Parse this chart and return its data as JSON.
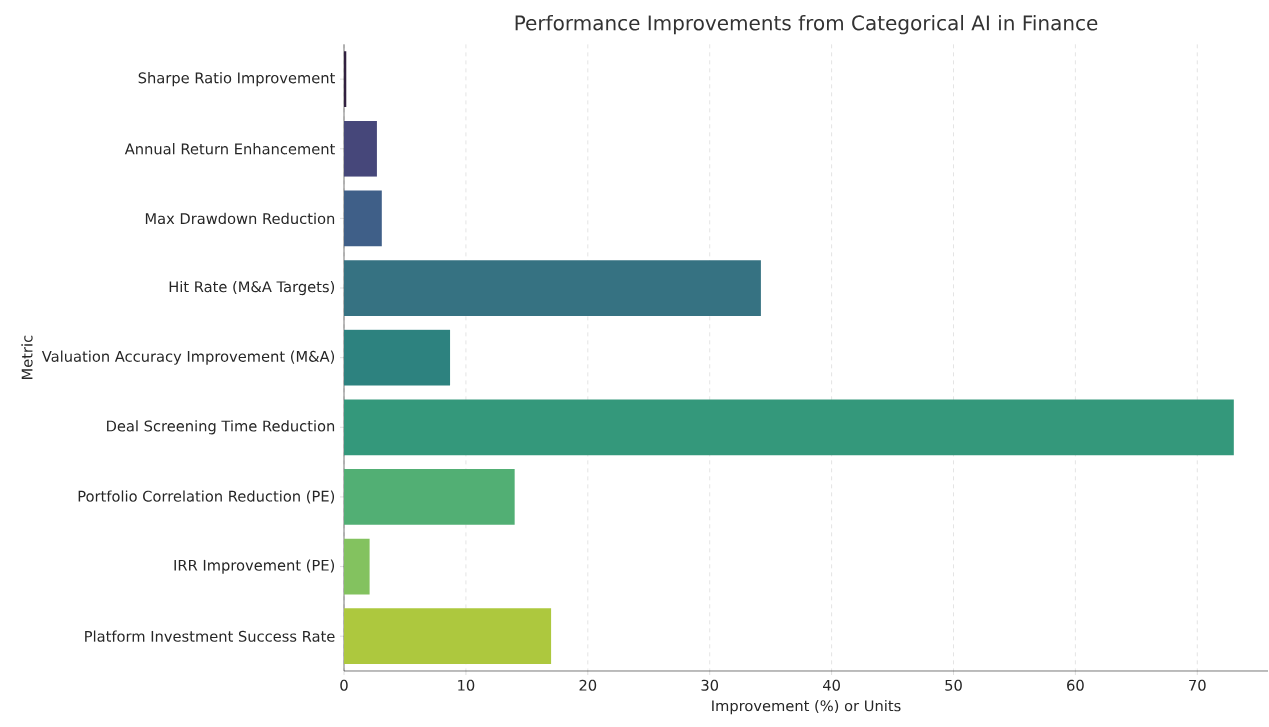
{
  "chart_data": {
    "type": "bar",
    "orientation": "horizontal",
    "title": "Performance Improvements from Categorical AI in Finance",
    "xlabel": "Improvement (%) or Units",
    "ylabel": "Metric",
    "categories": [
      "Sharpe Ratio Improvement",
      "Annual Return Enhancement",
      "Max Drawdown Reduction",
      "Hit Rate (M&A Targets)",
      "Valuation Accuracy Improvement (M&A)",
      "Deal Screening Time Reduction",
      "Portfolio Correlation Reduction (PE)",
      "IRR Improvement (PE)",
      "Platform Investment Success Rate"
    ],
    "values": [
      0.2,
      2.7,
      3.1,
      34.2,
      8.7,
      73.0,
      14.0,
      2.1,
      17.0
    ],
    "colors": [
      "#31203f",
      "#46477a",
      "#3f5f88",
      "#367282",
      "#2d827f",
      "#34987b",
      "#52af74",
      "#83c25f",
      "#adc83e"
    ],
    "xlim": [
      0,
      75.8
    ],
    "xticks": [
      0,
      10,
      20,
      30,
      40,
      50,
      60,
      70
    ],
    "grid": "x"
  }
}
